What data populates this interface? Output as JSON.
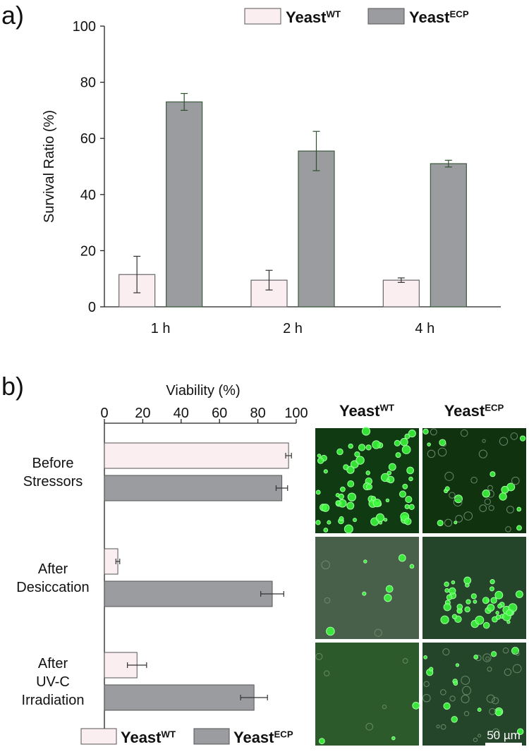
{
  "panel_a": {
    "label": "a)",
    "chart_data": {
      "type": "bar",
      "ylabel": "Survival Ratio (%)",
      "categories": [
        "1 h",
        "2 h",
        "4 h"
      ],
      "series": [
        {
          "name": "Yeast",
          "superscript": "WT",
          "color": "#fbeef0",
          "values": [
            11.5,
            9.5,
            9.5
          ],
          "errors": [
            6.5,
            3.5,
            0.8
          ]
        },
        {
          "name": "Yeast",
          "superscript": "ECP",
          "color": "#9a9ca0",
          "values": [
            73,
            55.5,
            51
          ],
          "errors": [
            3,
            7,
            1.2
          ]
        }
      ],
      "ylim": [
        0,
        100
      ],
      "yticks": [
        0,
        20,
        40,
        60,
        80,
        100
      ],
      "legend": "top-right"
    }
  },
  "panel_b": {
    "label": "b)",
    "chart_data": {
      "type": "hbar",
      "xlabel": "Viability (%)",
      "categories": [
        [
          "Before",
          "Stressors"
        ],
        [
          "After",
          "Desiccation"
        ],
        [
          "After",
          "UV-C",
          "Irradiation"
        ]
      ],
      "series": [
        {
          "name": "Yeast",
          "superscript": "WT",
          "color": "#fbeef0",
          "values": [
            96,
            7,
            17
          ],
          "errors": [
            1.5,
            1,
            5
          ]
        },
        {
          "name": "Yeast",
          "superscript": "ECP",
          "color": "#9a9ca0",
          "values": [
            92.5,
            87.5,
            78
          ],
          "errors": [
            3,
            6,
            7
          ]
        }
      ],
      "xlim": [
        0,
        100
      ],
      "xticks": [
        0,
        20,
        40,
        60,
        80,
        100
      ],
      "legend": "bottom"
    },
    "images": {
      "columns": [
        {
          "name": "Yeast",
          "superscript": "WT"
        },
        {
          "name": "Yeast",
          "superscript": "ECP"
        }
      ],
      "scale_bar": "50 µm"
    }
  }
}
